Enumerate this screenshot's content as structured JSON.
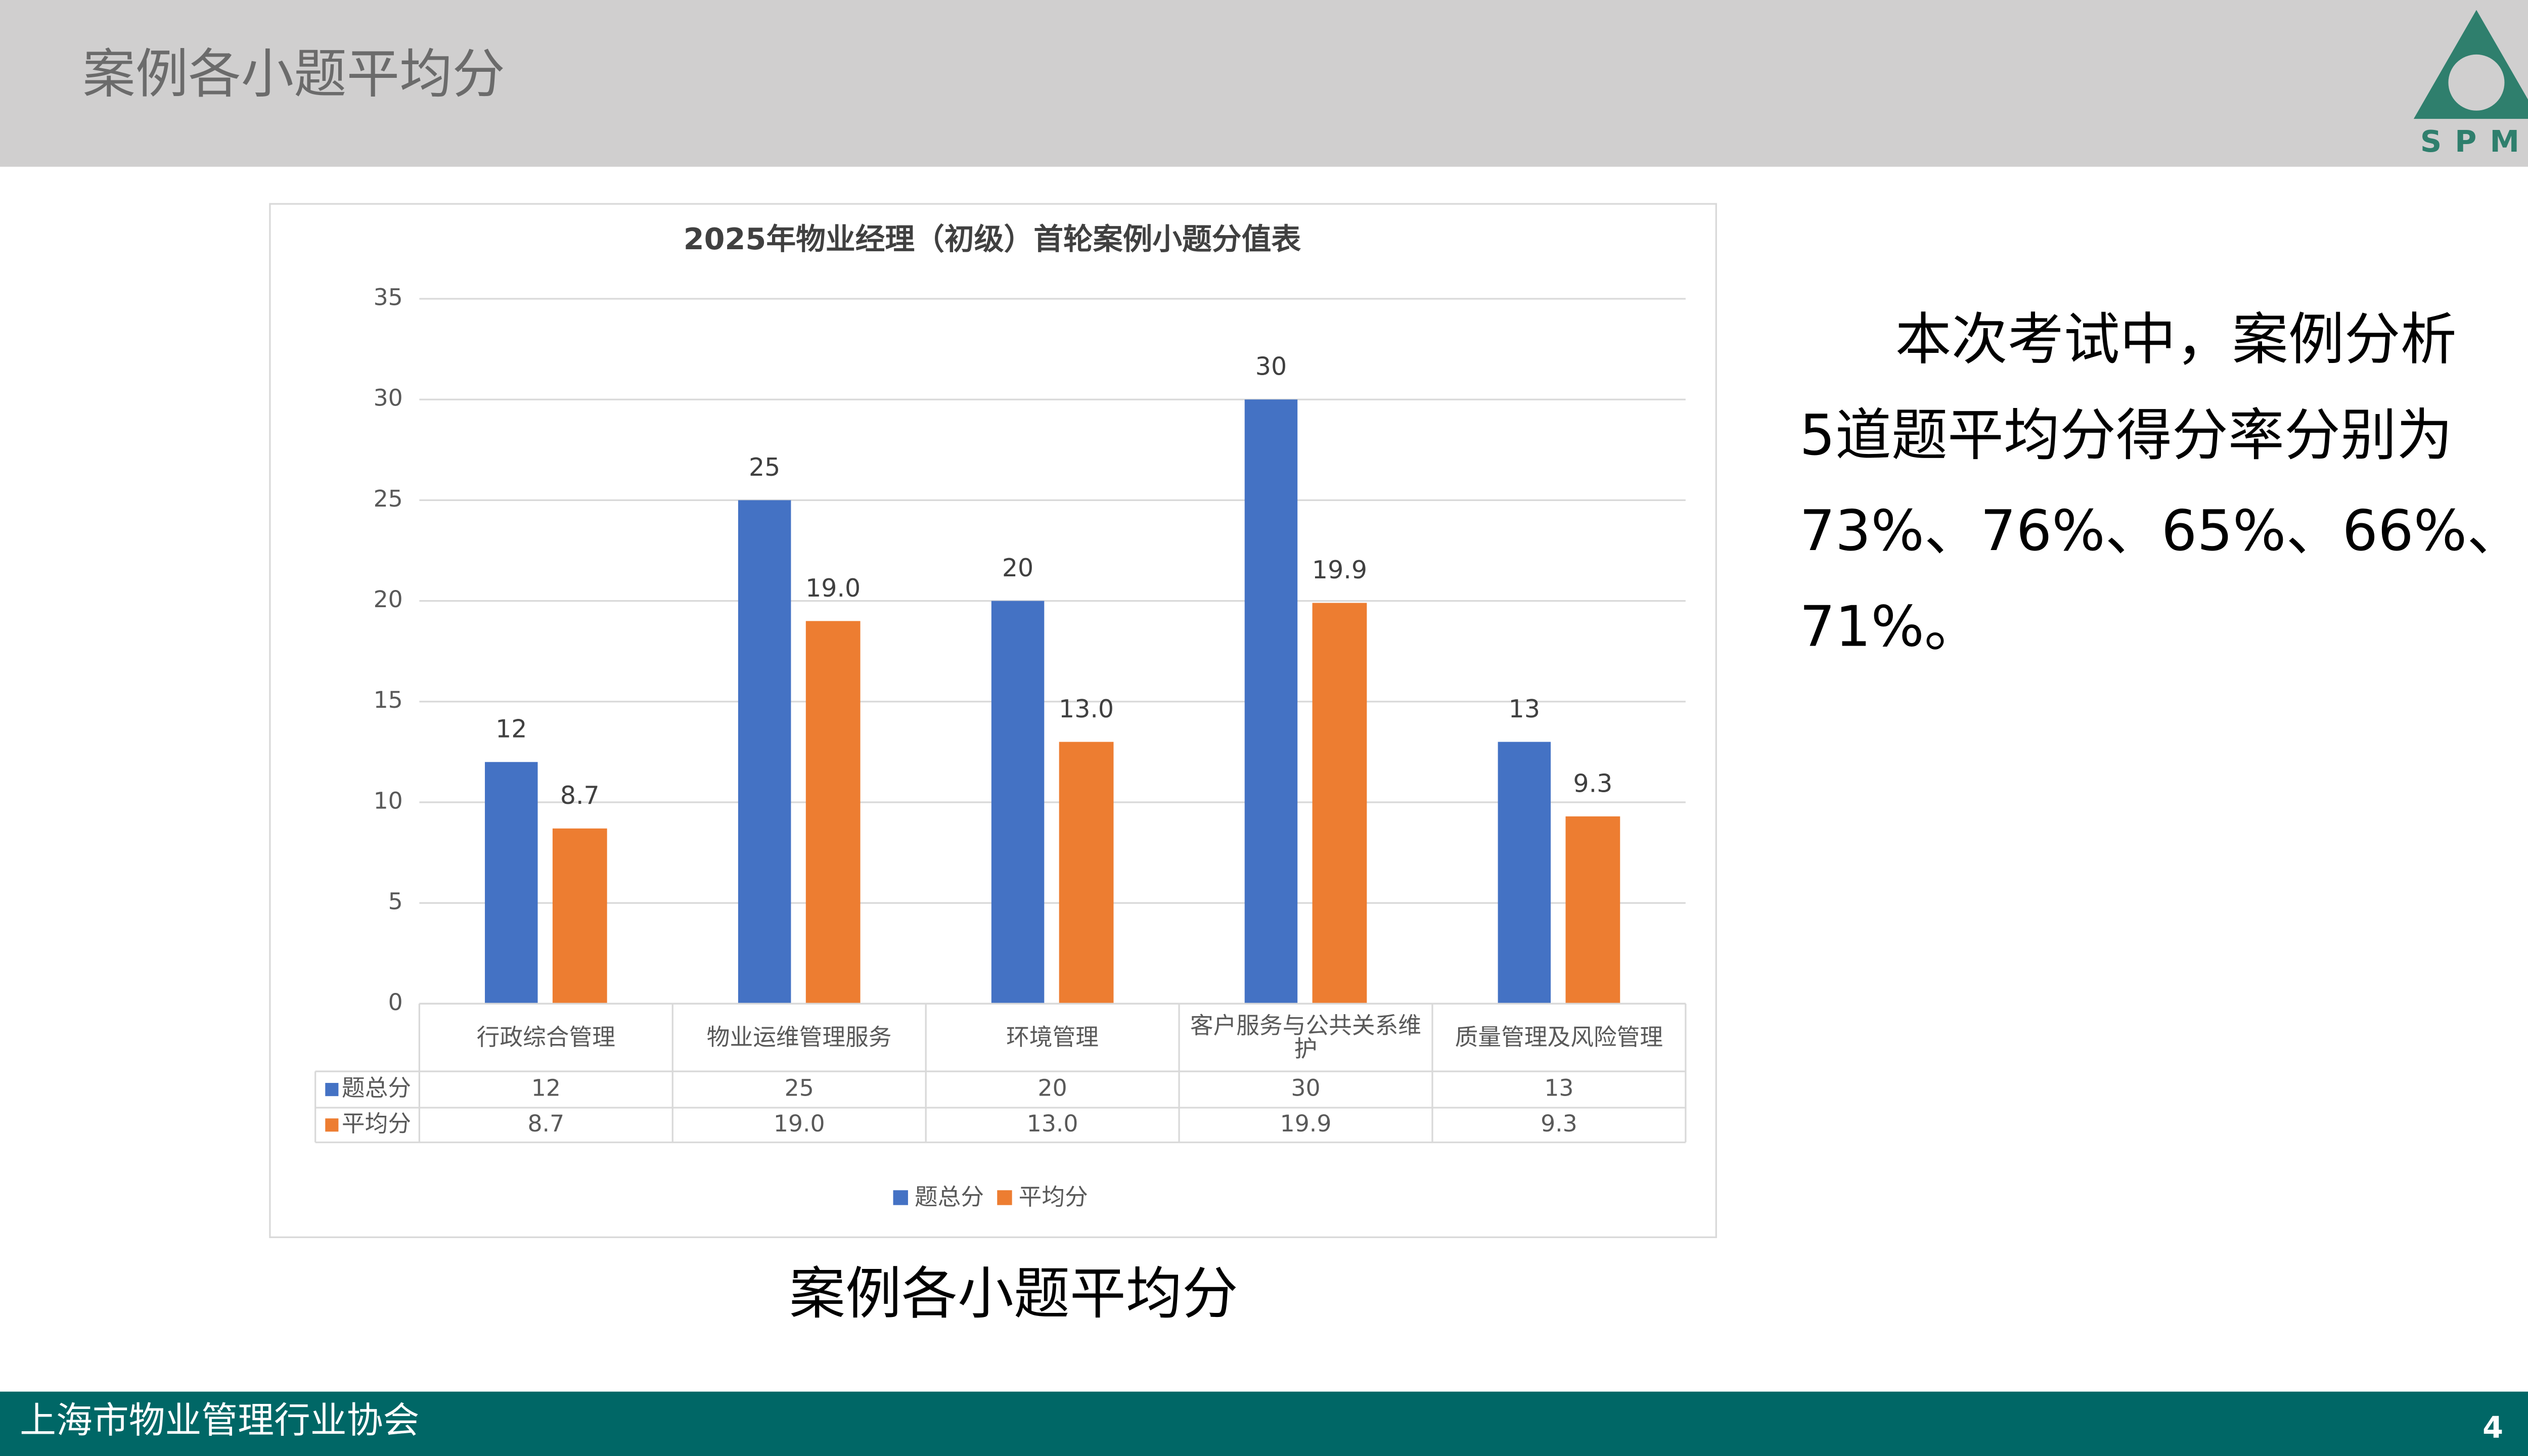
{
  "header": {
    "title": "案例各小题平均分",
    "logo_text": "SPM"
  },
  "chart_data": {
    "type": "bar",
    "title": "2025年物业经理（初级）首轮案例小题分值表",
    "categories": [
      "行政综合管理",
      "物业运维管理服务",
      "环境管理",
      "客户服务与公共关系维护",
      "质量管理及风险管理"
    ],
    "series": [
      {
        "name": "题总分",
        "color": "#4472c4",
        "values": [
          12,
          25,
          20,
          30,
          13
        ]
      },
      {
        "name": "平均分",
        "color": "#ed7d31",
        "values": [
          8.7,
          19,
          13,
          19.9,
          9.3
        ],
        "value_labels": [
          "8.7",
          "19.0",
          "13.0",
          "19.9",
          "9.3"
        ]
      }
    ],
    "ylim": [
      0,
      35
    ],
    "yticks": [
      0,
      5,
      10,
      15,
      20,
      25,
      30,
      35
    ],
    "grid": true,
    "legend": "bottom",
    "data_table": true
  },
  "caption": "案例各小题平均分",
  "body_text_lines": [
    "本次考试中，案例分析",
    "5道题平均分得分率分别为",
    "73%、76%、65%、66%、",
    "71%。"
  ],
  "footer": {
    "organization": "上海市物业管理行业协会",
    "page_number": 4
  }
}
